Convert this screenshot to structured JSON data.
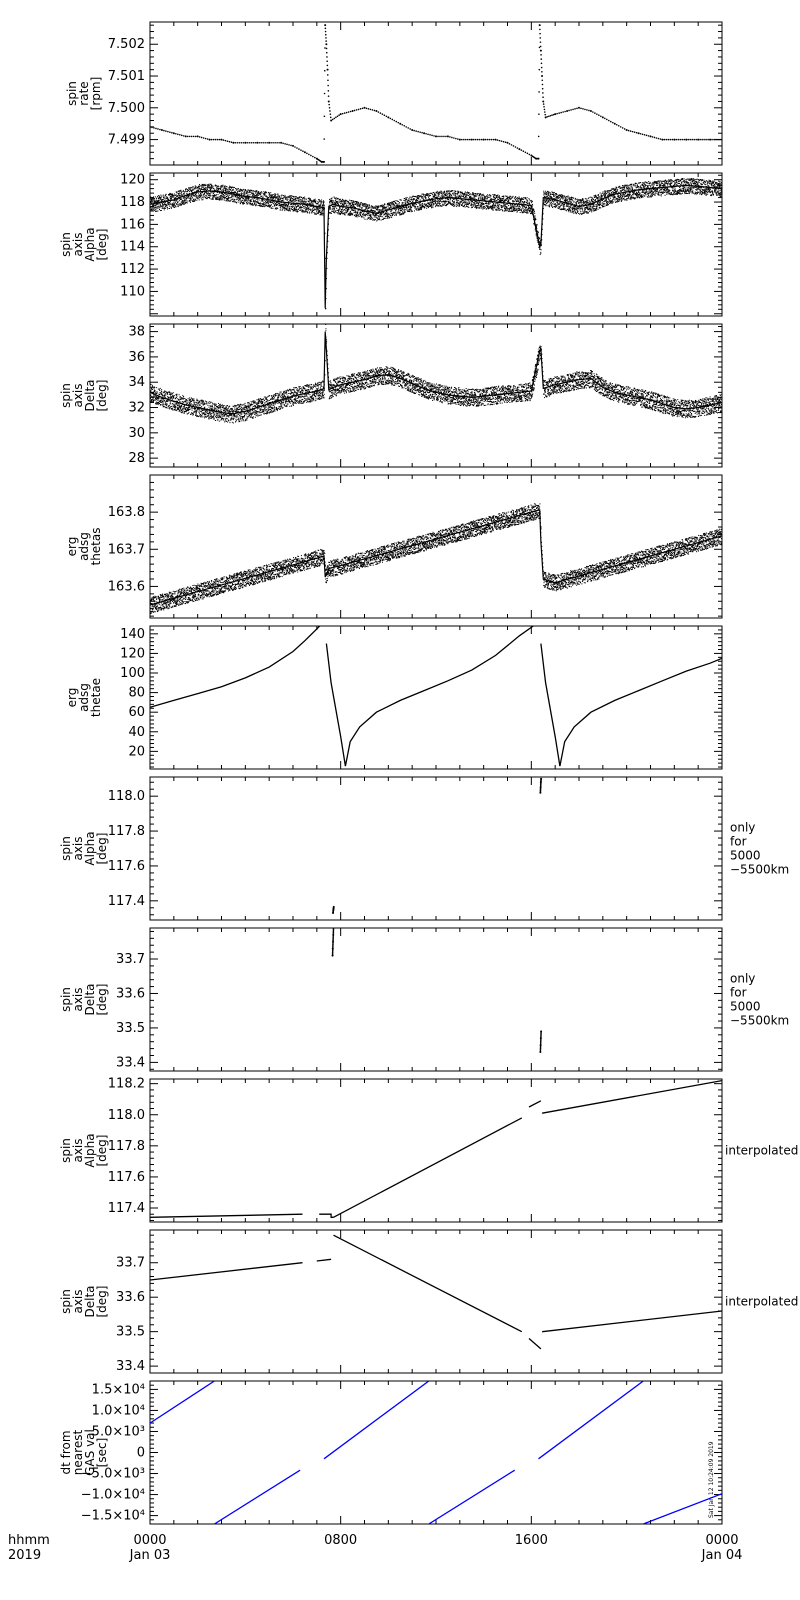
{
  "chart_data": [
    {
      "type": "scatter",
      "ylabel": [
        "spin",
        "rate",
        "[rpm]"
      ],
      "yticks": [
        7.499,
        7.5,
        7.501,
        7.502
      ],
      "ylim": [
        7.4982,
        7.5027
      ],
      "right_note": [],
      "series": [
        {
          "name": "",
          "color": "#000000",
          "style": "dots",
          "x": [
            0,
            0.5,
            1,
            1.5,
            2,
            2.5,
            3,
            3.5,
            4,
            4.5,
            5,
            5.5,
            6,
            6.5,
            7,
            7.2,
            7.3,
            7.35,
            7.4,
            7.45,
            7.5,
            7.6,
            8,
            8.5,
            9,
            9.5,
            10,
            10.5,
            11,
            11.5,
            12,
            12.5,
            13,
            13.5,
            14,
            14.5,
            15,
            15.5,
            16,
            16.2,
            16.3,
            16.35,
            16.4,
            16.45,
            16.5,
            16.6,
            17,
            17.5,
            18,
            18.5,
            19,
            19.5,
            20,
            20.5,
            21,
            21.5,
            22,
            22.5,
            23,
            23.5,
            24
          ],
          "y": [
            7.4994,
            7.4993,
            7.4992,
            7.4991,
            7.4991,
            7.499,
            7.499,
            7.4989,
            7.4989,
            7.4989,
            7.4989,
            7.4989,
            7.4988,
            7.4986,
            7.4984,
            7.4983,
            7.4983,
            7.5026,
            7.502,
            7.5012,
            7.5002,
            7.4996,
            7.4998,
            7.4999,
            7.5,
            7.4999,
            7.4997,
            7.4995,
            7.4993,
            7.4992,
            7.4991,
            7.4991,
            7.499,
            7.499,
            7.499,
            7.499,
            7.4989,
            7.4987,
            7.4985,
            7.4984,
            7.4984,
            7.5026,
            7.5018,
            7.501,
            7.5002,
            7.4997,
            7.4998,
            7.4999,
            7.5,
            7.4999,
            7.4997,
            7.4995,
            7.4993,
            7.4992,
            7.4991,
            7.499,
            7.499,
            7.499,
            7.499,
            7.499,
            7.499
          ]
        }
      ]
    },
    {
      "type": "scatter",
      "ylabel": [
        "spin",
        "axis",
        "Alpha",
        "[deg]"
      ],
      "yticks": [
        110,
        112,
        114,
        116,
        118,
        120
      ],
      "ylim": [
        107.8,
        120.6
      ],
      "right_note": [],
      "series": [
        {
          "name": "",
          "color": "#000000",
          "style": "band",
          "x": [
            0,
            0.5,
            1,
            1.5,
            2,
            2.5,
            3,
            3.5,
            4,
            4.5,
            5,
            5.5,
            6,
            6.5,
            7,
            7.3,
            7.35,
            7.4,
            7.5,
            7.7,
            8,
            8.5,
            9,
            9.5,
            10,
            10.5,
            11,
            11.5,
            12,
            12.5,
            13,
            13.5,
            14,
            14.5,
            15,
            15.5,
            16,
            16.35,
            16.4,
            16.5,
            17,
            17.5,
            18,
            18.5,
            19,
            19.5,
            20,
            20.5,
            21,
            21.5,
            22,
            22.5,
            23,
            23.5,
            24
          ],
          "y": [
            117.8,
            118.0,
            118.2,
            118.6,
            118.9,
            119.0,
            118.9,
            118.7,
            118.5,
            118.4,
            118.2,
            118.0,
            117.9,
            117.8,
            117.6,
            117.5,
            108.5,
            113.0,
            117.6,
            117.8,
            117.6,
            117.5,
            117.2,
            117.0,
            117.3,
            117.6,
            117.9,
            118.1,
            118.3,
            118.4,
            118.3,
            118.2,
            118.1,
            118.0,
            117.9,
            117.8,
            117.7,
            114.0,
            114.2,
            118.4,
            118.2,
            117.9,
            117.6,
            117.8,
            118.3,
            118.7,
            118.9,
            119.1,
            119.2,
            119.3,
            119.4,
            119.5,
            119.4,
            119.3,
            119.2
          ],
          "spread": 0.7
        }
      ]
    },
    {
      "type": "scatter",
      "ylabel": [
        "spin",
        "axis",
        "Delta",
        "[deg]"
      ],
      "yticks": [
        28,
        30,
        32,
        34,
        36,
        38
      ],
      "ylim": [
        27.3,
        38.6
      ],
      "right_note": [],
      "series": [
        {
          "name": "",
          "color": "#000000",
          "style": "band",
          "x": [
            0,
            0.5,
            1,
            1.5,
            2,
            2.5,
            3,
            3.5,
            4,
            4.5,
            5,
            5.5,
            6,
            6.5,
            7,
            7.3,
            7.35,
            7.4,
            7.5,
            7.7,
            8,
            8.5,
            9,
            9.5,
            10,
            10.5,
            11,
            11.5,
            12,
            12.5,
            13,
            13.5,
            14,
            14.5,
            15,
            15.5,
            16,
            16.35,
            16.4,
            16.5,
            17,
            17.5,
            18,
            18.5,
            19,
            19.5,
            20,
            20.5,
            21,
            21.5,
            22,
            22.5,
            23,
            23.5,
            24
          ],
          "y": [
            33.2,
            32.8,
            32.5,
            32.2,
            32.0,
            31.8,
            31.6,
            31.5,
            31.7,
            32.0,
            32.3,
            32.6,
            32.9,
            33.1,
            33.3,
            33.5,
            38.0,
            36.5,
            33.4,
            33.6,
            33.8,
            34.0,
            34.2,
            34.5,
            34.6,
            34.3,
            33.9,
            33.5,
            33.2,
            33.0,
            32.9,
            32.8,
            32.9,
            33.0,
            33.1,
            33.2,
            33.3,
            36.5,
            36.6,
            33.5,
            33.8,
            34.0,
            34.2,
            34.3,
            33.6,
            33.2,
            33.0,
            32.8,
            32.6,
            32.3,
            32.0,
            31.9,
            32.0,
            32.2,
            32.4
          ],
          "spread": 0.7
        }
      ]
    },
    {
      "type": "scatter",
      "ylabel": [
        "erg",
        "adsg",
        "thetas"
      ],
      "yticks": [
        163.6,
        163.7,
        163.8
      ],
      "ylim": [
        163.515,
        163.9
      ],
      "right_note": [],
      "series": [
        {
          "name": "",
          "color": "#000000",
          "style": "band",
          "x": [
            0,
            1,
            2,
            3,
            4,
            5,
            6,
            7,
            7.3,
            7.35,
            7.5,
            8,
            9,
            10,
            11,
            12,
            13,
            14,
            15,
            16,
            16.35,
            16.4,
            16.5,
            17,
            18,
            19,
            20,
            21,
            22,
            23,
            24
          ],
          "y": [
            163.55,
            163.568,
            163.586,
            163.604,
            163.622,
            163.64,
            163.658,
            163.676,
            163.682,
            163.625,
            163.648,
            163.656,
            163.674,
            163.692,
            163.71,
            163.728,
            163.746,
            163.764,
            163.782,
            163.8,
            163.806,
            163.72,
            163.62,
            163.61,
            163.628,
            163.646,
            163.664,
            163.682,
            163.7,
            163.718,
            163.736
          ],
          "spread": 0.022
        }
      ]
    },
    {
      "type": "line",
      "ylabel": [
        "erg",
        "adsg",
        "thetae"
      ],
      "yticks": [
        20,
        40,
        60,
        80,
        100,
        120,
        140
      ],
      "ylim": [
        2,
        148
      ],
      "right_note": [],
      "series": [
        {
          "name": "",
          "color": "#000000",
          "style": "line",
          "x": [
            0,
            1,
            2,
            3,
            4,
            5,
            6,
            6.5,
            7,
            7.2
          ],
          "y": [
            65,
            72,
            79,
            86,
            95,
            106,
            122,
            133,
            145,
            150
          ]
        },
        {
          "name": "",
          "color": "#000000",
          "style": "line",
          "x": [
            7.4,
            7.6,
            8,
            8.2
          ],
          "y": [
            130,
            90,
            35,
            5
          ]
        },
        {
          "name": "",
          "color": "#000000",
          "style": "line",
          "x": [
            8.2,
            8.4,
            8.8,
            9.5,
            10.5,
            11.5,
            12.5,
            13.5,
            14.5,
            15.5,
            16.2
          ],
          "y": [
            5,
            30,
            45,
            60,
            72,
            82,
            92,
            103,
            118,
            138,
            150
          ]
        },
        {
          "name": "",
          "color": "#000000",
          "style": "line",
          "x": [
            16.4,
            16.6,
            17,
            17.2
          ],
          "y": [
            130,
            90,
            35,
            5
          ]
        },
        {
          "name": "",
          "color": "#000000",
          "style": "line",
          "x": [
            17.2,
            17.4,
            17.8,
            18.5,
            19.5,
            20.5,
            21.5,
            22.5,
            23.5,
            24
          ],
          "y": [
            5,
            30,
            45,
            60,
            72,
            82,
            92,
            102,
            110,
            115
          ]
        }
      ]
    },
    {
      "type": "scatter",
      "ylabel": [
        "spin",
        "axis",
        "Alpha",
        "[deg]"
      ],
      "yticks": [
        117.4,
        117.6,
        117.8,
        118.0
      ],
      "ylim": [
        117.29,
        118.11
      ],
      "right_note": [
        "only",
        "for",
        "5000",
        "−5500km"
      ],
      "series": [
        {
          "name": "",
          "color": "#000000",
          "style": "dots",
          "x": [
            7.68,
            7.69,
            7.7,
            7.71,
            16.38,
            16.39,
            16.4,
            16.41
          ],
          "y": [
            117.33,
            117.345,
            117.355,
            117.365,
            118.02,
            118.05,
            118.08,
            118.1
          ]
        }
      ]
    },
    {
      "type": "scatter",
      "ylabel": [
        "spin",
        "axis",
        "Delta",
        "[deg]"
      ],
      "yticks": [
        33.4,
        33.5,
        33.6,
        33.7
      ],
      "ylim": [
        33.375,
        33.79
      ],
      "right_note": [
        "only",
        "for",
        "5000",
        "−5500km"
      ],
      "series": [
        {
          "name": "",
          "color": "#000000",
          "style": "dots",
          "x": [
            7.66,
            7.67,
            7.68,
            7.69,
            7.7,
            16.38,
            16.39,
            16.4,
            16.41
          ],
          "y": [
            33.71,
            33.73,
            33.75,
            33.77,
            33.79,
            33.43,
            33.45,
            33.47,
            33.49
          ]
        }
      ]
    },
    {
      "type": "line",
      "ylabel": [
        "spin",
        "axis",
        "Alpha",
        "[deg]"
      ],
      "yticks": [
        117.4,
        117.6,
        117.8,
        118.0,
        118.2
      ],
      "ylim": [
        117.31,
        118.23
      ],
      "right_note": [
        "interpolated"
      ],
      "series": [
        {
          "name": "",
          "color": "#000000",
          "style": "line",
          "x": [
            0,
            6.4
          ],
          "y": [
            117.34,
            117.36
          ]
        },
        {
          "name": "",
          "color": "#000000",
          "style": "line",
          "x": [
            7.1,
            7.6,
            7.6,
            7.7
          ],
          "y": [
            117.36,
            117.36,
            117.34,
            117.34
          ]
        },
        {
          "name": "",
          "color": "#000000",
          "style": "line",
          "x": [
            7.7,
            15.6
          ],
          "y": [
            117.34,
            117.98
          ]
        },
        {
          "name": "",
          "color": "#000000",
          "style": "line",
          "x": [
            15.9,
            16.4
          ],
          "y": [
            118.05,
            118.09
          ]
        },
        {
          "name": "",
          "color": "#000000",
          "style": "line",
          "x": [
            16.45,
            24
          ],
          "y": [
            118.01,
            118.22
          ]
        }
      ]
    },
    {
      "type": "line",
      "ylabel": [
        "spin",
        "axis",
        "Delta",
        "[deg]"
      ],
      "yticks": [
        33.4,
        33.5,
        33.6,
        33.7
      ],
      "ylim": [
        33.38,
        33.795
      ],
      "right_note": [
        "interpolated"
      ],
      "series": [
        {
          "name": "",
          "color": "#000000",
          "style": "line",
          "x": [
            0,
            6.4
          ],
          "y": [
            33.65,
            33.7
          ]
        },
        {
          "name": "",
          "color": "#000000",
          "style": "line",
          "x": [
            7.0,
            7.6
          ],
          "y": [
            33.705,
            33.71
          ]
        },
        {
          "name": "",
          "color": "#000000",
          "style": "line",
          "x": [
            7.7,
            15.6
          ],
          "y": [
            33.78,
            33.5
          ]
        },
        {
          "name": "",
          "color": "#000000",
          "style": "line",
          "x": [
            15.9,
            16.4
          ],
          "y": [
            33.48,
            33.45
          ]
        },
        {
          "name": "",
          "color": "#000000",
          "style": "line",
          "x": [
            16.45,
            24
          ],
          "y": [
            33.5,
            33.56
          ]
        }
      ]
    },
    {
      "type": "line",
      "ylabel": [
        "dt from",
        "nearest",
        "GAS val",
        "[sec]"
      ],
      "yticks": [
        -15000,
        -10000,
        -5000,
        0,
        5000,
        10000,
        15000
      ],
      "ytick_labels": [
        "−1.5×10⁴",
        "−1.0×10⁴",
        "−5.0×10³",
        "0",
        "5.0×10³",
        "1.0×10⁴",
        "1.5×10⁴"
      ],
      "ylim": [
        -17000,
        17000
      ],
      "right_note": [],
      "series": [
        {
          "name": "",
          "color": "#0000ff",
          "style": "line",
          "x": [
            0,
            2.7
          ],
          "y": [
            7000,
            17000
          ]
        },
        {
          "name": "",
          "color": "#0000ff",
          "style": "line",
          "x": [
            2.7,
            6.3
          ],
          "y": [
            -17000,
            -4200
          ]
        },
        {
          "name": "",
          "color": "#0000ff",
          "style": "line",
          "x": [
            7.3,
            11.7
          ],
          "y": [
            -1500,
            17000
          ]
        },
        {
          "name": "",
          "color": "#0000ff",
          "style": "line",
          "x": [
            11.7,
            15.3
          ],
          "y": [
            -17000,
            -4200
          ]
        },
        {
          "name": "",
          "color": "#0000ff",
          "style": "line",
          "x": [
            16.3,
            20.7
          ],
          "y": [
            -1500,
            17000
          ]
        },
        {
          "name": "",
          "color": "#0000ff",
          "style": "line",
          "x": [
            20.7,
            24
          ],
          "y": [
            -17000,
            -9800
          ]
        }
      ],
      "stamp": "Sat Jan 12 10:24:09 2019"
    }
  ],
  "x_axis": {
    "range": [
      0,
      24
    ],
    "major_ticks": [
      0,
      8,
      16,
      24
    ],
    "tick_labels": [
      {
        "x": 0,
        "line1": "0000",
        "line2": "Jan 03"
      },
      {
        "x": 8,
        "line1": "0800",
        "line2": ""
      },
      {
        "x": 16,
        "line1": "1600",
        "line2": ""
      },
      {
        "x": 24,
        "line1": "0000",
        "line2": "Jan 04"
      }
    ],
    "corner_label": [
      "hhmm",
      "2019"
    ]
  }
}
